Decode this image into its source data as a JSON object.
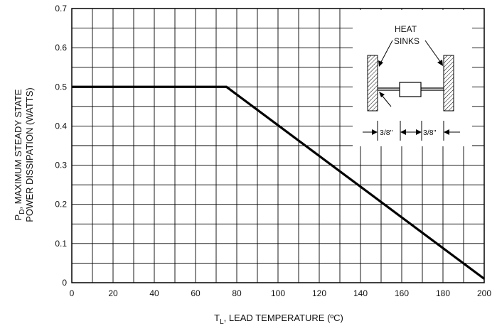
{
  "chart_data": {
    "type": "line",
    "xlabel": "T",
    "xlabel_sub": "L",
    "xlabel_rest": ", LEAD TEMPERATURE (ºC)",
    "ylabel_line1": "P",
    "ylabel_line1_sub": "D",
    "ylabel_line1_rest": ", MAXIMUM STEADY STATE",
    "ylabel_line2": "POWER DISSIPATION (WATTS)",
    "xlim": [
      0,
      200
    ],
    "ylim": [
      0,
      0.7
    ],
    "x_ticks": [
      "0",
      "20",
      "40",
      "60",
      "80",
      "100",
      "120",
      "140",
      "160",
      "180",
      "200"
    ],
    "y_ticks": [
      "0",
      "0.1",
      "0.2",
      "0.3",
      "0.4",
      "0.5",
      "0.6",
      "0.7"
    ],
    "grid": true,
    "series": [
      {
        "x": [
          0,
          75,
          200
        ],
        "y": [
          0.5,
          0.5,
          0.01
        ]
      }
    ],
    "inset": {
      "label_line1": "HEAT",
      "label_line2": "SINKS",
      "dim_left": "3/8\"",
      "dim_right": "3/8\""
    }
  }
}
